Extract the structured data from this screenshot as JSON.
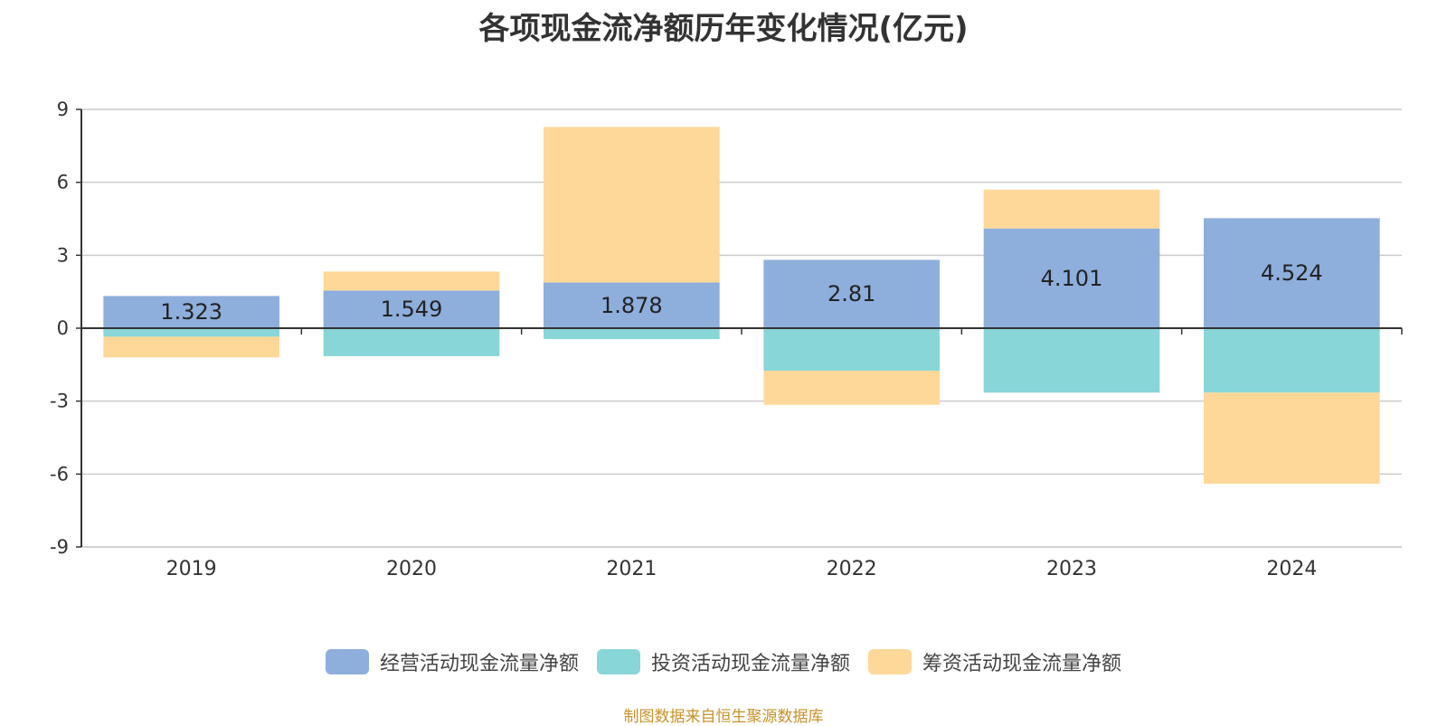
{
  "chart_data": {
    "type": "bar",
    "stacked": true,
    "title": "各项现金流净额历年变化情况(亿元)",
    "categories": [
      "2019",
      "2020",
      "2021",
      "2022",
      "2023",
      "2024"
    ],
    "ylim": [
      -9,
      9
    ],
    "yticks": [
      "9",
      "6",
      "3",
      "0",
      "-3",
      "-6",
      "-9"
    ],
    "ytick_values": [
      9,
      6,
      3,
      0,
      -3,
      -6,
      -9
    ],
    "grid": true,
    "legend_position": "bottom",
    "series": [
      {
        "name": "经营活动现金流量净额",
        "color": "#8eaedc",
        "values": [
          1.323,
          1.549,
          1.878,
          2.81,
          4.101,
          4.524
        ],
        "labels": [
          "1.323",
          "1.549",
          "1.878",
          "2.81",
          "4.101",
          "4.524"
        ]
      },
      {
        "name": "投资活动现金流量净额",
        "color": "#88d6d8",
        "values": [
          -0.35,
          -1.15,
          -0.45,
          -1.75,
          -2.65,
          -2.65
        ]
      },
      {
        "name": "筹资活动现金流量净额",
        "color": "#fed898",
        "values": [
          -0.85,
          0.78,
          6.4,
          -1.4,
          1.6,
          -3.75
        ]
      }
    ]
  },
  "source_note": "制图数据来自恒生聚源数据库"
}
